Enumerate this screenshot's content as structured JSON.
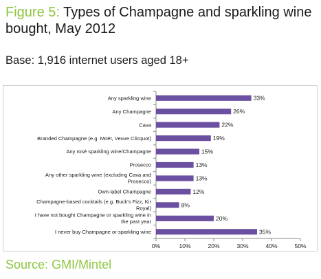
{
  "header": {
    "figure_label": "Figure 5:",
    "title": "Types of Champagne and sparkling wine bought, May 2012",
    "base": "Base: 1,916 internet users aged 18+"
  },
  "footer": {
    "source_label": "Source:",
    "source_name": "GMI/Mintel"
  },
  "colors": {
    "bar": "#6b4fa0",
    "accent": "#8cc63f",
    "axis": "#888888"
  },
  "chart_data": {
    "type": "bar",
    "orientation": "horizontal",
    "categories": [
      "Any sparkling wine",
      "Any Champagne",
      "Cava",
      "Branded Champagne (e.g. Moët,  Veuve Clicquot)",
      "Any rosé sparkling wine/Champagne",
      "Prosecco",
      "Any other sparkling wine (excluding Cava and Prosecco)",
      "Own-label Champagne",
      "Champagne-based cocktails  (e.g. Buck's Fizz, Kir Royal)",
      "I have not bought Champagne or sparkling wine in the past year",
      "I never buy Champagne  or sparkling wine"
    ],
    "values": [
      33,
      26,
      22,
      19,
      15,
      13,
      13,
      12,
      8,
      20,
      35
    ],
    "value_labels": [
      "33%",
      "26%",
      "22%",
      "19%",
      "15%",
      "13%",
      "13%",
      "12%",
      "8%",
      "20%",
      "35%"
    ],
    "xlim": [
      0,
      50
    ],
    "xticks": [
      "0%",
      "10%",
      "20%",
      "30%",
      "40%",
      "50%"
    ],
    "grid": false,
    "legend": "none"
  }
}
